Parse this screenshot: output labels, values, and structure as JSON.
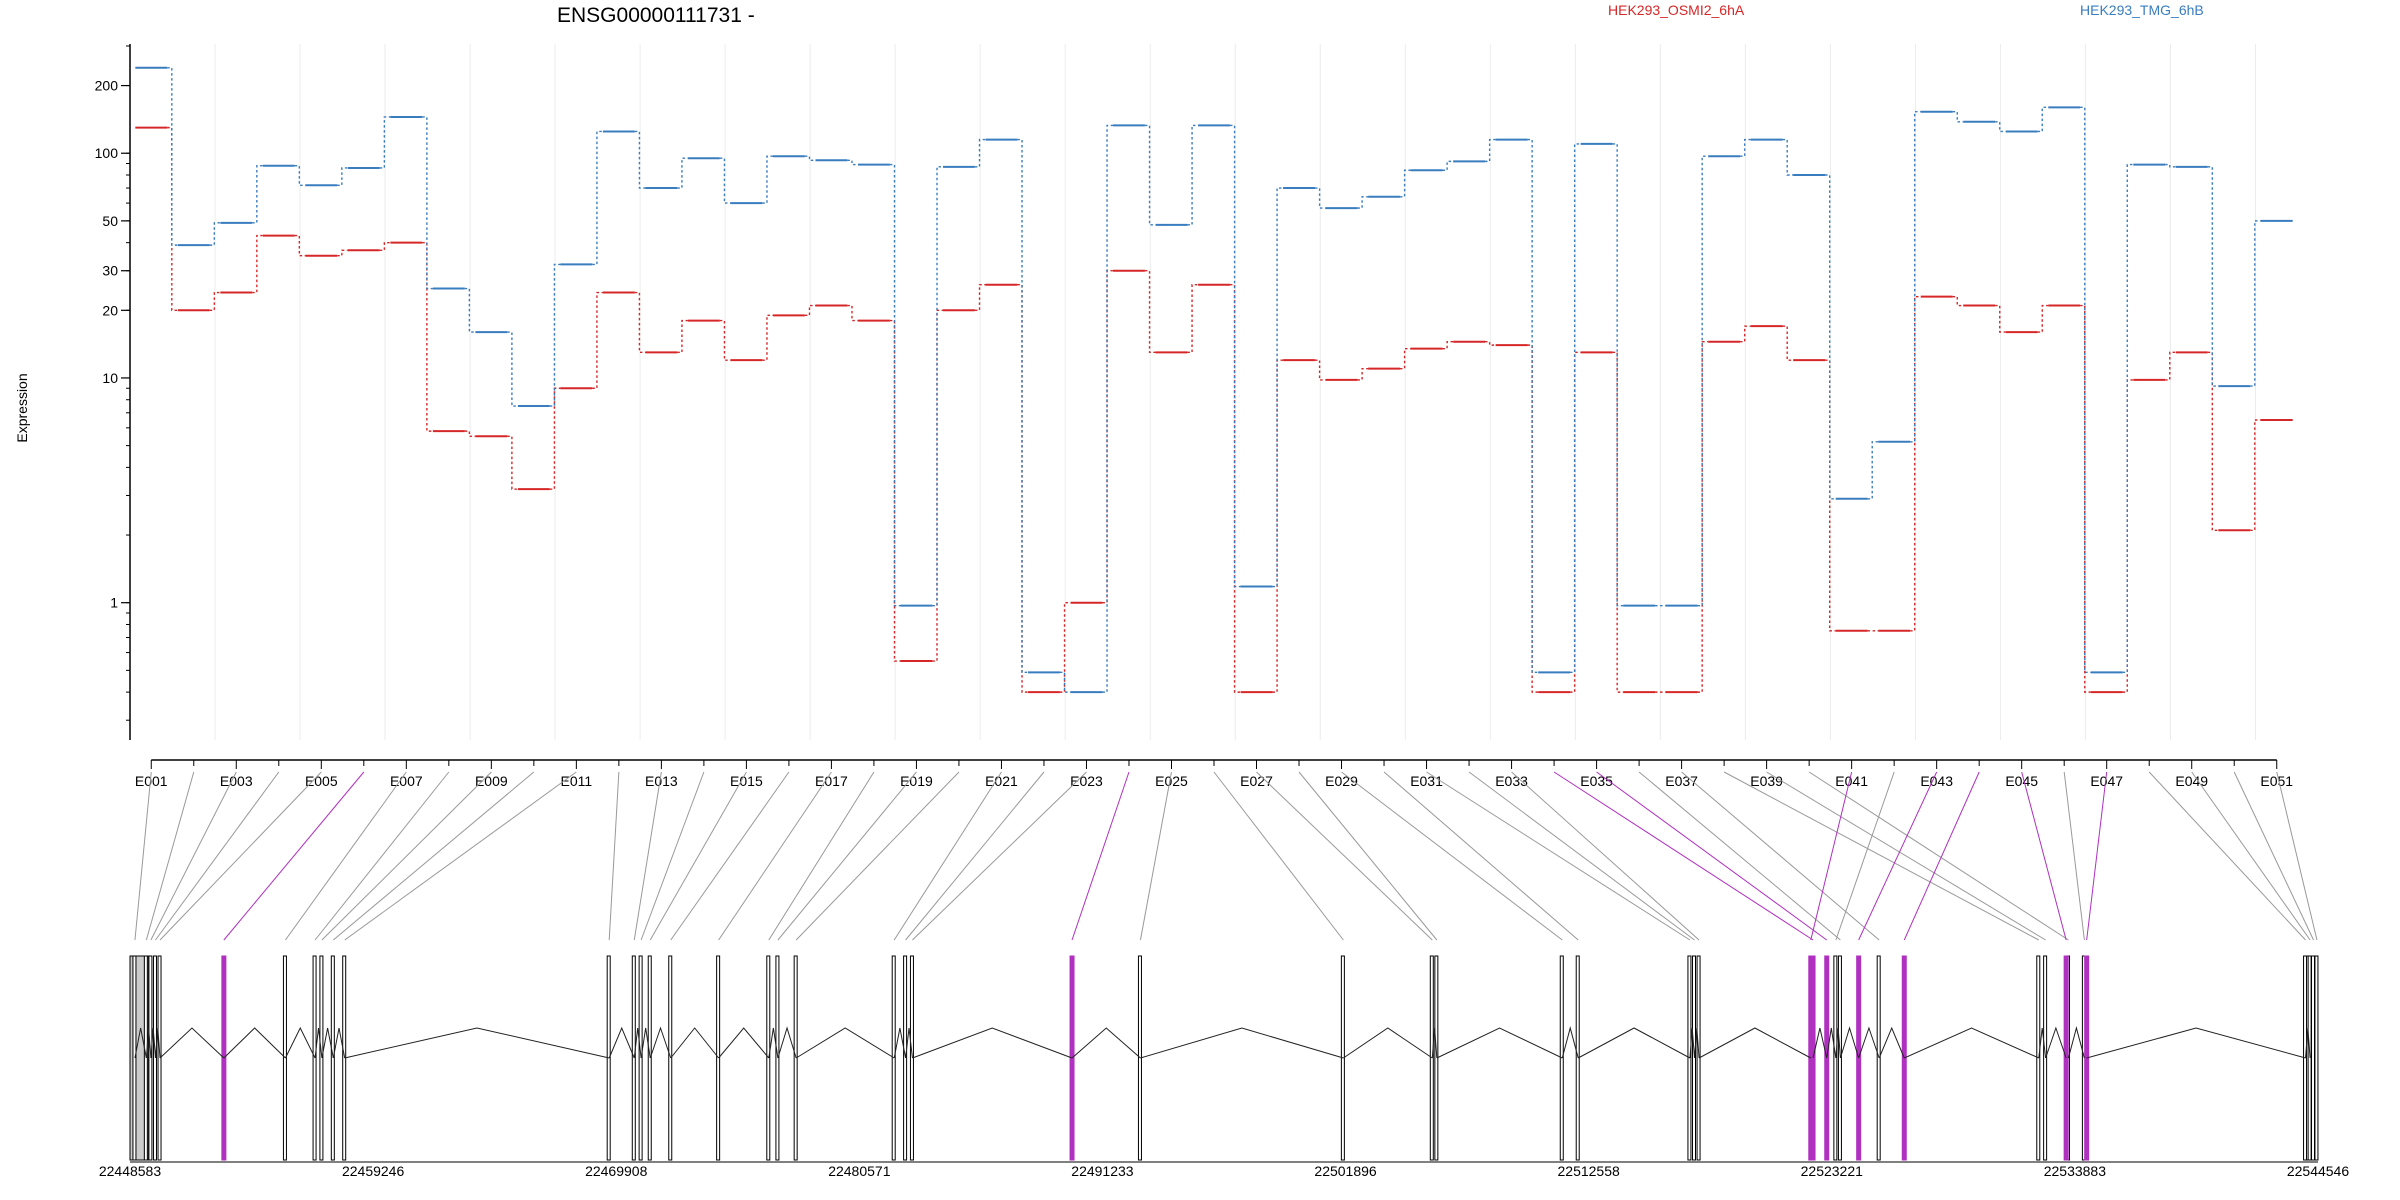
{
  "chart_data": {
    "type": "line",
    "title": "ENSG00000111731 -",
    "ylabel": "Expression",
    "yscale": "log",
    "ylim": [
      0.25,
      300
    ],
    "y_ticks": [
      1,
      10,
      20,
      30,
      50,
      100,
      200
    ],
    "grid": "vertical",
    "legend": "top-right",
    "categories": [
      "E001",
      "E002",
      "E003",
      "E004",
      "E005",
      "E006",
      "E007",
      "E008",
      "E009",
      "E010",
      "E011",
      "E012",
      "E013",
      "E014",
      "E015",
      "E016",
      "E017",
      "E018",
      "E019",
      "E020",
      "E021",
      "E022",
      "E023",
      "E024",
      "E025",
      "E026",
      "E027",
      "E028",
      "E029",
      "E030",
      "E031",
      "E032",
      "E033",
      "E034",
      "E035",
      "E036",
      "E037",
      "E038",
      "E039",
      "E040",
      "E041",
      "E042",
      "E043",
      "E044",
      "E045",
      "E046",
      "E047",
      "E048",
      "E049",
      "E050",
      "E051"
    ],
    "x_tick_labels": [
      "E001",
      "E003",
      "E005",
      "E007",
      "E009",
      "E011",
      "E013",
      "E015",
      "E017",
      "E019",
      "E021",
      "E023",
      "E025",
      "E027",
      "E029",
      "E031",
      "E033",
      "E035",
      "E037",
      "E039",
      "E041",
      "E043",
      "E045",
      "E047",
      "E049",
      "E051"
    ],
    "series": [
      {
        "name": "HEK293_OSMI2_6hA",
        "color": "#d62728",
        "values": [
          130,
          20,
          24,
          43,
          35,
          37,
          40,
          5.8,
          5.5,
          3.2,
          9,
          24,
          13,
          18,
          12,
          19,
          21,
          18,
          0.55,
          20,
          26,
          0.4,
          1,
          30,
          13,
          26,
          0.4,
          12,
          9.8,
          11,
          13.5,
          14.5,
          14,
          0.4,
          13,
          0.4,
          0.4,
          14.5,
          17,
          12,
          0.75,
          0.75,
          23,
          21,
          16,
          21,
          0.4,
          9.8,
          13,
          2.1,
          6.5
        ]
      },
      {
        "name": "HEK293_TMG_6hB",
        "color": "#3a7dbf",
        "values": [
          240,
          39,
          49,
          88,
          72,
          86,
          145,
          25,
          16,
          7.5,
          32,
          125,
          70,
          95,
          60,
          97,
          93,
          89,
          0.97,
          87,
          115,
          0.49,
          0.4,
          133,
          48,
          133,
          1.18,
          70,
          57,
          64,
          84,
          92,
          115,
          0.49,
          110,
          0.97,
          0.97,
          97,
          115,
          80,
          2.9,
          5.2,
          153,
          138,
          125,
          160,
          0.49,
          89,
          87,
          9.2,
          50
        ]
      }
    ],
    "gene_model": {
      "coordinate_labels": [
        "22448583",
        "22459246",
        "22469908",
        "22480571",
        "22491233",
        "22501896",
        "22512558",
        "22523221",
        "22533883",
        "22544546"
      ],
      "highlight_color": "#b030c0"
    }
  }
}
